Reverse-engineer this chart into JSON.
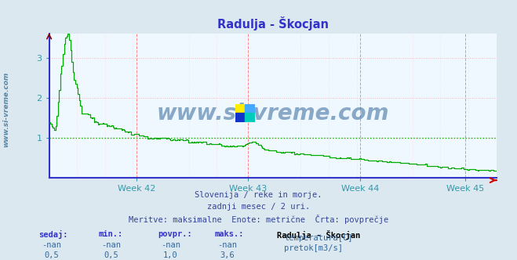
{
  "title": "Radulja - Škocjan",
  "bg_color": "#dce8f0",
  "plot_bg_color": "#f0f8ff",
  "grid_h_color": "#ffb0b0",
  "grid_v_color": "#ffb0b0",
  "axis_color": "#3333cc",
  "tick_color": "#3399aa",
  "title_color": "#3333cc",
  "watermark": "www.si-vreme.com",
  "watermark_color": "#336699",
  "sidebar_text": "www.si-vreme.com",
  "sidebar_color": "#5588aa",
  "subtitle_lines": [
    "Slovenija / reke in morje.",
    "zadnji mesec / 2 uri.",
    "Meritve: maksimalne  Enote: metrične  Črta: povprečje"
  ],
  "legend_title": "Radulja - Škocjan",
  "legend_items": [
    {
      "label": "temperatura[C]",
      "color": "#cc0000"
    },
    {
      "label": "pretok[m3/s]",
      "color": "#00aa00"
    }
  ],
  "table_headers": [
    "sedaj:",
    "min.:",
    "povpr.:",
    "maks.:"
  ],
  "table_row1": [
    "-nan",
    "-nan",
    "-nan",
    "-nan"
  ],
  "table_row2": [
    "0,5",
    "0,5",
    "1,0",
    "3,6"
  ],
  "x_tick_labels": [
    "Week 42",
    "Week 43",
    "Week 44",
    "Week 45"
  ],
  "x_tick_positions": [
    0.195,
    0.445,
    0.695,
    0.93
  ],
  "ylim": [
    0,
    3.6
  ],
  "yticks": [
    1,
    2,
    3
  ],
  "avg_line_value": 1.0,
  "avg_line_color": "#00bb00",
  "red_vlines_x": [
    0.0,
    0.195,
    0.445,
    0.695,
    0.93
  ],
  "flow_color": "#00aa00",
  "temp_color": "#cc0000",
  "n_points": 360
}
